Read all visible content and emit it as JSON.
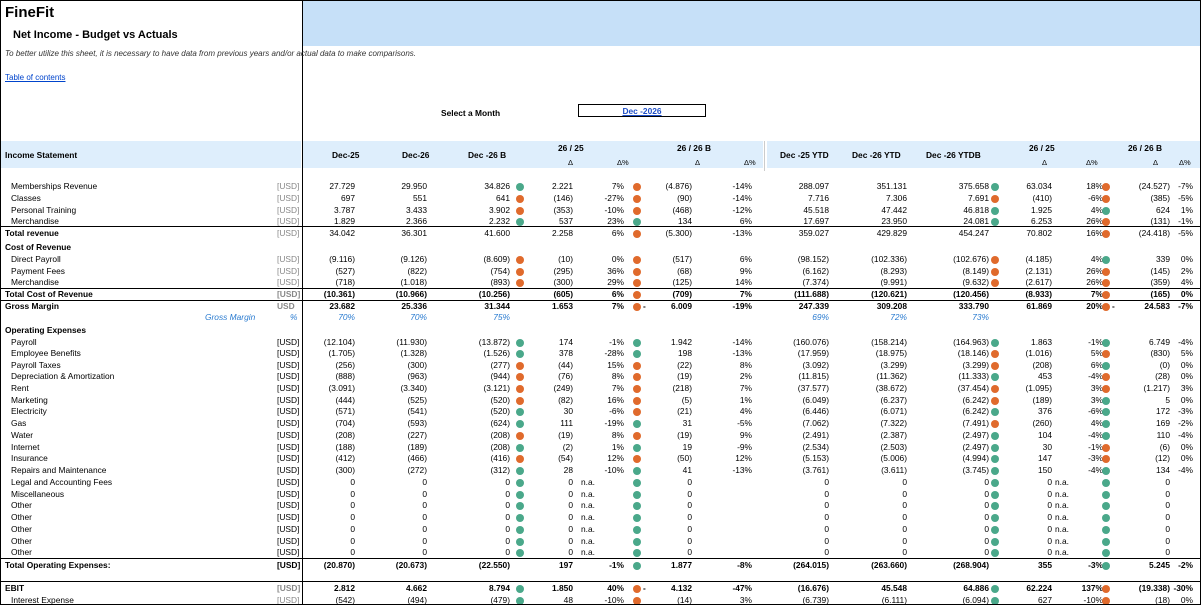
{
  "app": {
    "title": "FineFit"
  },
  "page": {
    "title": "Net Income - Budget vs Actuals",
    "info": "To better utilize this sheet, it is necessary to have data from previous years and/or actual data to make comparisons.",
    "toc": "Table of contents",
    "select_label": "Select a Month",
    "selected_month": "Dec -2026"
  },
  "colors": {
    "header_blue": "#c6e0f8",
    "green_dot": "#4aa88a",
    "red_dot": "#e06a2c",
    "link": "#0044cc"
  },
  "header": {
    "col0": "Income Statement",
    "c1": "Dec-25",
    "c2": "Dec-26",
    "c3": "Dec -26 B",
    "g1": "26 / 25",
    "g2": "26 / 26 B",
    "c8": "Dec -25 YTD",
    "c9": "Dec -26 YTD",
    "c10": "Dec -26 YTDB",
    "g3": "26 / 25",
    "g4": "26 / 26 B",
    "delta": "Δ",
    "delta_pct": "Δ%"
  },
  "rows": [
    {
      "label": "Memberships Revenue",
      "unit": "[USD]",
      "ug": true,
      "v": [
        "27.729",
        "29.950",
        "34.826",
        "2.221",
        "7%",
        "(4.876)",
        "-14%",
        "288.097",
        "351.131",
        "375.658",
        "63.034",
        "18%",
        "(24.527)",
        "-7%"
      ],
      "d": [
        "g",
        "r",
        "g",
        "r"
      ]
    },
    {
      "label": "Classes",
      "unit": "[USD]",
      "ug": true,
      "v": [
        "697",
        "551",
        "641",
        "(146)",
        "-27%",
        "(90)",
        "-14%",
        "7.716",
        "7.306",
        "7.691",
        "(410)",
        "-6%",
        "(385)",
        "-5%"
      ],
      "d": [
        "r",
        "r",
        "r",
        "r"
      ]
    },
    {
      "label": "Personal Training",
      "unit": "[USD]",
      "ug": true,
      "v": [
        "3.787",
        "3.433",
        "3.902",
        "(353)",
        "-10%",
        "(468)",
        "-12%",
        "45.518",
        "47.442",
        "46.818",
        "1.925",
        "4%",
        "624",
        "1%"
      ],
      "d": [
        "r",
        "r",
        "g",
        "g"
      ]
    },
    {
      "label": "Merchandise",
      "unit": "[USD]",
      "ug": true,
      "v": [
        "1.829",
        "2.366",
        "2.232",
        "537",
        "23%",
        "134",
        "6%",
        "17.697",
        "23.950",
        "24.081",
        "6.253",
        "26%",
        "(131)",
        "-1%"
      ],
      "d": [
        "g",
        "g",
        "g",
        "r"
      ]
    },
    {
      "label": "Total revenue",
      "unit": "[USD]",
      "ug": true,
      "bl": true,
      "v": [
        "34.042",
        "36.301",
        "41.600",
        "2.258",
        "6%",
        "(5.300)",
        "-13%",
        "359.027",
        "429.829",
        "454.247",
        "70.802",
        "16%",
        "(24.418)",
        "-5%"
      ],
      "d": [
        "",
        "r",
        "",
        "r"
      ]
    },
    {
      "label": "Cost  of Revenue",
      "bl": true,
      "v": [],
      "d": []
    },
    {
      "label": "Direct Payroll",
      "unit": "[USD]",
      "ug": true,
      "v": [
        "(9.116)",
        "(9.126)",
        "(8.609)",
        "(10)",
        "0%",
        "(517)",
        "6%",
        "(98.152)",
        "(102.336)",
        "(102.676)",
        "(4.185)",
        "4%",
        "339",
        "0%"
      ],
      "d": [
        "r",
        "r",
        "r",
        "g"
      ]
    },
    {
      "label": "Payment Fees",
      "unit": "[USD]",
      "ug": true,
      "v": [
        "(527)",
        "(822)",
        "(754)",
        "(295)",
        "36%",
        "(68)",
        "9%",
        "(6.162)",
        "(8.293)",
        "(8.149)",
        "(2.131)",
        "26%",
        "(145)",
        "2%"
      ],
      "d": [
        "r",
        "r",
        "r",
        "r"
      ]
    },
    {
      "label": "Merchandise",
      "unit": "[USD]",
      "ug": true,
      "v": [
        "(718)",
        "(1.018)",
        "(893)",
        "(300)",
        "29%",
        "(125)",
        "14%",
        "(7.374)",
        "(9.991)",
        "(9.632)",
        "(2.617)",
        "26%",
        "(359)",
        "4%"
      ],
      "d": [
        "r",
        "r",
        "r",
        "r"
      ]
    },
    {
      "label": "Total Cost of Revenue",
      "unit": "[USD]",
      "ug": true,
      "bl": true,
      "bold": true,
      "v": [
        "(10.361)",
        "(10.966)",
        "(10.256)",
        "(605)",
        "6%",
        "(709)",
        "7%",
        "(111.688)",
        "(120.621)",
        "(120.456)",
        "(8.933)",
        "7%",
        "(165)",
        "0%"
      ],
      "d": [
        "",
        "r",
        "",
        "r"
      ]
    },
    {
      "label": "Gross Margin",
      "unit": "USD",
      "ug": true,
      "bl": true,
      "bold": true,
      "v": [
        "23.682",
        "25.336",
        "31.344",
        "1.653",
        "7%",
        "6.009",
        "-19%",
        "247.339",
        "309.208",
        "333.790",
        "61.869",
        "20%",
        "24.583",
        "-7%"
      ],
      "d": [
        "",
        "r-",
        "",
        "r-"
      ]
    },
    {
      "label": "Gross Margin",
      "unit": "%",
      "gm": true,
      "v": [
        "70%",
        "70%",
        "75%",
        "",
        "",
        "",
        "",
        "69%",
        "72%",
        "73%",
        "",
        "",
        "",
        ""
      ],
      "d": []
    },
    {
      "label": "Operating Expenses",
      "bl": true,
      "v": [],
      "d": []
    },
    {
      "label": "Payroll",
      "unit": "[USD]",
      "v": [
        "(12.104)",
        "(11.930)",
        "(13.872)",
        "174",
        "-1%",
        "1.942",
        "-14%",
        "(160.076)",
        "(158.214)",
        "(164.963)",
        "1.863",
        "-1%",
        "6.749",
        "-4%"
      ],
      "d": [
        "g",
        "g",
        "g",
        "g"
      ]
    },
    {
      "label": "Employee Benefits",
      "unit": "[USD]",
      "v": [
        "(1.705)",
        "(1.328)",
        "(1.526)",
        "378",
        "-28%",
        "198",
        "-13%",
        "(17.959)",
        "(18.975)",
        "(18.146)",
        "(1.016)",
        "5%",
        "(830)",
        "5%"
      ],
      "d": [
        "g",
        "g",
        "r",
        "r"
      ]
    },
    {
      "label": "Payroll Taxes",
      "unit": "[USD]",
      "v": [
        "(256)",
        "(300)",
        "(277)",
        "(44)",
        "15%",
        "(22)",
        "8%",
        "(3.092)",
        "(3.299)",
        "(3.299)",
        "(208)",
        "6%",
        "(0)",
        "0%"
      ],
      "d": [
        "r",
        "r",
        "r",
        "g"
      ]
    },
    {
      "label": "Depreciation & Amortization",
      "unit": "[USD]",
      "v": [
        "(888)",
        "(963)",
        "(944)",
        "(76)",
        "8%",
        "(19)",
        "2%",
        "(11.815)",
        "(11.362)",
        "(11.333)",
        "453",
        "-4%",
        "(28)",
        "0%"
      ],
      "d": [
        "r",
        "r",
        "g",
        "r"
      ]
    },
    {
      "label": "Rent",
      "unit": "[USD]",
      "v": [
        "(3.091)",
        "(3.340)",
        "(3.121)",
        "(249)",
        "7%",
        "(218)",
        "7%",
        "(37.577)",
        "(38.672)",
        "(37.454)",
        "(1.095)",
        "3%",
        "(1.217)",
        "3%"
      ],
      "d": [
        "r",
        "r",
        "r",
        "r"
      ]
    },
    {
      "label": "Marketing",
      "unit": "[USD]",
      "v": [
        "(444)",
        "(525)",
        "(520)",
        "(82)",
        "16%",
        "(5)",
        "1%",
        "(6.049)",
        "(6.237)",
        "(6.242)",
        "(189)",
        "3%",
        "5",
        "0%"
      ],
      "d": [
        "r",
        "r",
        "r",
        "g"
      ]
    },
    {
      "label": "Electricity",
      "unit": "[USD]",
      "v": [
        "(571)",
        "(541)",
        "(520)",
        "30",
        "-6%",
        "(21)",
        "4%",
        "(6.446)",
        "(6.071)",
        "(6.242)",
        "376",
        "-6%",
        "172",
        "-3%"
      ],
      "d": [
        "g",
        "r",
        "g",
        "g"
      ]
    },
    {
      "label": "Gas",
      "unit": "[USD]",
      "v": [
        "(704)",
        "(593)",
        "(624)",
        "111",
        "-19%",
        "31",
        "-5%",
        "(7.062)",
        "(7.322)",
        "(7.491)",
        "(260)",
        "4%",
        "169",
        "-2%"
      ],
      "d": [
        "g",
        "g",
        "r",
        "g"
      ]
    },
    {
      "label": "Water",
      "unit": "[USD]",
      "v": [
        "(208)",
        "(227)",
        "(208)",
        "(19)",
        "8%",
        "(19)",
        "9%",
        "(2.491)",
        "(2.387)",
        "(2.497)",
        "104",
        "-4%",
        "110",
        "-4%"
      ],
      "d": [
        "r",
        "r",
        "g",
        "g"
      ]
    },
    {
      "label": "Internet",
      "unit": "[USD]",
      "v": [
        "(188)",
        "(189)",
        "(208)",
        "(2)",
        "1%",
        "19",
        "-9%",
        "(2.534)",
        "(2.503)",
        "(2.497)",
        "30",
        "-1%",
        "(6)",
        "0%"
      ],
      "d": [
        "g",
        "g",
        "g",
        "r"
      ]
    },
    {
      "label": "Insurance",
      "unit": "[USD]",
      "v": [
        "(412)",
        "(466)",
        "(416)",
        "(54)",
        "12%",
        "(50)",
        "12%",
        "(5.153)",
        "(5.006)",
        "(4.994)",
        "147",
        "-3%",
        "(12)",
        "0%"
      ],
      "d": [
        "r",
        "r",
        "g",
        "r"
      ]
    },
    {
      "label": "Repairs and Maintenance",
      "unit": "[USD]",
      "v": [
        "(300)",
        "(272)",
        "(312)",
        "28",
        "-10%",
        "41",
        "-13%",
        "(3.761)",
        "(3.611)",
        "(3.745)",
        "150",
        "-4%",
        "134",
        "-4%"
      ],
      "d": [
        "g",
        "g",
        "g",
        "g"
      ]
    },
    {
      "label": "Legal and Accounting Fees",
      "unit": "[USD]",
      "na": true,
      "v": [
        "0",
        "0",
        "0",
        "0",
        "n.a.",
        "0",
        "",
        "0",
        "0",
        "0",
        "0",
        "n.a.",
        "0",
        ""
      ],
      "d": [
        "g",
        "g",
        "g",
        "g"
      ]
    },
    {
      "label": "Miscellaneous",
      "unit": "[USD]",
      "na": true,
      "v": [
        "0",
        "0",
        "0",
        "0",
        "n.a.",
        "0",
        "",
        "0",
        "0",
        "0",
        "0",
        "n.a.",
        "0",
        ""
      ],
      "d": [
        "g",
        "g",
        "g",
        "g"
      ]
    },
    {
      "label": "Other",
      "unit": "[USD]",
      "na": true,
      "v": [
        "0",
        "0",
        "0",
        "0",
        "n.a.",
        "0",
        "",
        "0",
        "0",
        "0",
        "0",
        "n.a.",
        "0",
        ""
      ],
      "d": [
        "g",
        "g",
        "g",
        "g"
      ]
    },
    {
      "label": "Other",
      "unit": "[USD]",
      "na": true,
      "v": [
        "0",
        "0",
        "0",
        "0",
        "n.a.",
        "0",
        "",
        "0",
        "0",
        "0",
        "0",
        "n.a.",
        "0",
        ""
      ],
      "d": [
        "g",
        "g",
        "g",
        "g"
      ]
    },
    {
      "label": "Other",
      "unit": "[USD]",
      "na": true,
      "v": [
        "0",
        "0",
        "0",
        "0",
        "n.a.",
        "0",
        "",
        "0",
        "0",
        "0",
        "0",
        "n.a.",
        "0",
        ""
      ],
      "d": [
        "g",
        "g",
        "g",
        "g"
      ]
    },
    {
      "label": "Other",
      "unit": "[USD]",
      "na": true,
      "v": [
        "0",
        "0",
        "0",
        "0",
        "n.a.",
        "0",
        "",
        "0",
        "0",
        "0",
        "0",
        "n.a.",
        "0",
        ""
      ],
      "d": [
        "g",
        "g",
        "g",
        "g"
      ]
    },
    {
      "label": "Other",
      "unit": "[USD]",
      "na": true,
      "v": [
        "0",
        "0",
        "0",
        "0",
        "n.a.",
        "0",
        "",
        "0",
        "0",
        "0",
        "0",
        "n.a.",
        "0",
        ""
      ],
      "d": [
        "g",
        "g",
        "g",
        "g"
      ]
    },
    {
      "label": "Total Operating Expenses:",
      "unit": "[USD]",
      "bl": true,
      "bold": true,
      "v": [
        "(20.870)",
        "(20.673)",
        "(22.550)",
        "197",
        "-1%",
        "1.877",
        "-8%",
        "(264.015)",
        "(263.660)",
        "(268.904)",
        "355",
        "-3%",
        "5.245",
        "-2%"
      ],
      "d": [
        "",
        "g",
        "",
        "g"
      ]
    },
    {
      "label": "EBIT",
      "unit": "[USD]",
      "ug": true,
      "bl": true,
      "bold": true,
      "v": [
        "2.812",
        "4.662",
        "8.794",
        "1.850",
        "40%",
        "4.132",
        "-47%",
        "(16.676)",
        "45.548",
        "64.886",
        "62.224",
        "137%",
        "(19.338)",
        "-30%"
      ],
      "d": [
        "g",
        "r-",
        "g",
        "r"
      ]
    },
    {
      "label": "Interest Expense",
      "unit": "[USD]",
      "ug": true,
      "v": [
        "(542)",
        "(494)",
        "(479)",
        "48",
        "-10%",
        "(14)",
        "3%",
        "(6.739)",
        "(6.111)",
        "(6.094)",
        "627",
        "-10%",
        "(18)",
        "0%"
      ],
      "d": [
        "g",
        "r",
        "g",
        "r"
      ]
    }
  ]
}
